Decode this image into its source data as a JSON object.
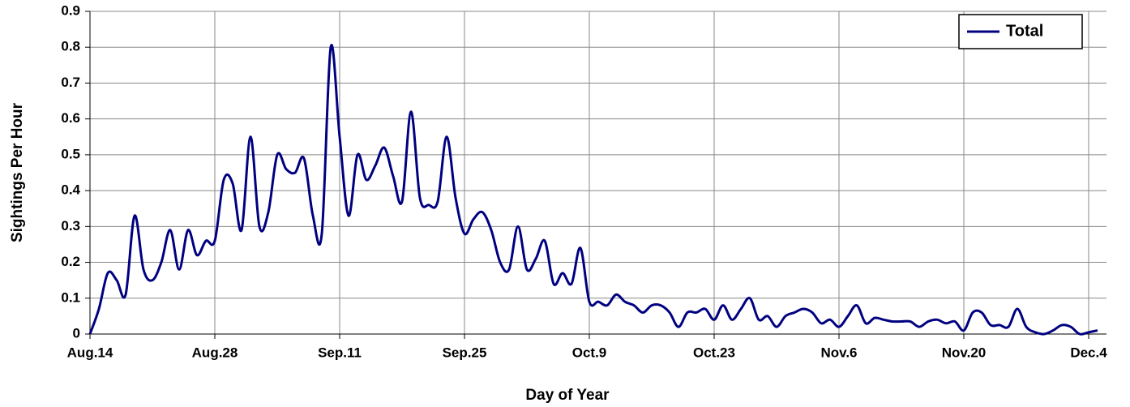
{
  "chart_data": {
    "type": "line",
    "xlabel": "Day of Year",
    "ylabel": "Sightings Per Hour",
    "x": [
      0,
      1,
      2,
      3,
      4,
      5,
      6,
      7,
      8,
      9,
      10,
      11,
      12,
      13,
      14,
      15,
      16,
      17,
      18,
      19,
      20,
      21,
      22,
      23,
      24,
      25,
      26,
      27,
      28,
      29,
      30,
      31,
      32,
      33,
      34,
      35,
      36,
      37,
      38,
      39,
      40,
      41,
      42,
      43,
      44,
      45,
      46,
      47,
      48,
      49,
      50,
      51,
      52,
      53,
      54,
      55,
      56,
      57,
      58,
      59,
      60,
      61,
      62,
      63,
      64,
      65,
      66,
      67,
      68,
      69,
      70,
      71,
      72,
      73,
      74,
      75,
      76,
      77,
      78,
      79,
      80,
      81,
      82,
      83,
      84,
      85,
      86,
      87,
      88,
      89,
      90,
      91,
      92,
      93,
      94,
      95,
      96,
      97,
      98,
      99,
      100,
      101,
      102,
      103,
      104,
      105,
      106,
      107,
      108,
      109,
      110,
      111,
      112,
      113
    ],
    "series": [
      {
        "name": "Total",
        "color": "#000080",
        "values": [
          0,
          0.07,
          0.17,
          0.15,
          0.11,
          0.33,
          0.18,
          0.15,
          0.2,
          0.29,
          0.18,
          0.29,
          0.22,
          0.26,
          0.26,
          0.43,
          0.42,
          0.29,
          0.55,
          0.3,
          0.34,
          0.5,
          0.46,
          0.45,
          0.49,
          0.33,
          0.28,
          0.8,
          0.55,
          0.33,
          0.5,
          0.43,
          0.47,
          0.52,
          0.44,
          0.37,
          0.62,
          0.38,
          0.36,
          0.37,
          0.55,
          0.38,
          0.28,
          0.32,
          0.34,
          0.29,
          0.2,
          0.18,
          0.3,
          0.18,
          0.21,
          0.26,
          0.14,
          0.17,
          0.14,
          0.24,
          0.09,
          0.09,
          0.08,
          0.11,
          0.09,
          0.08,
          0.06,
          0.08,
          0.08,
          0.06,
          0.02,
          0.06,
          0.06,
          0.07,
          0.04,
          0.08,
          0.04,
          0.07,
          0.1,
          0.04,
          0.05,
          0.02,
          0.05,
          0.06,
          0.07,
          0.06,
          0.03,
          0.04,
          0.02,
          0.05,
          0.08,
          0.03,
          0.045,
          0.04,
          0.035,
          0.035,
          0.035,
          0.02,
          0.035,
          0.04,
          0.03,
          0.035,
          0.01,
          0.06,
          0.06,
          0.025,
          0.025,
          0.02,
          0.07,
          0.02,
          0.005,
          0,
          0.01,
          0.025,
          0.02,
          0,
          0.005,
          0.01
        ]
      }
    ],
    "xlim": [
      0,
      114
    ],
    "xticks": [
      {
        "value": 0,
        "label": "Aug.14"
      },
      {
        "value": 14,
        "label": "Aug.28"
      },
      {
        "value": 28,
        "label": "Sep.11"
      },
      {
        "value": 42,
        "label": "Sep.25"
      },
      {
        "value": 56,
        "label": "Oct.9"
      },
      {
        "value": 70,
        "label": "Oct.23"
      },
      {
        "value": 84,
        "label": "Nov.6"
      },
      {
        "value": 98,
        "label": "Nov.20"
      },
      {
        "value": 112,
        "label": "Dec.4"
      }
    ],
    "ylim": [
      0,
      0.9
    ],
    "yticks": [
      0,
      0.1,
      0.2,
      0.3,
      0.4,
      0.5,
      0.6,
      0.7,
      0.8,
      0.9
    ],
    "grid": true,
    "legend": "upper right"
  }
}
